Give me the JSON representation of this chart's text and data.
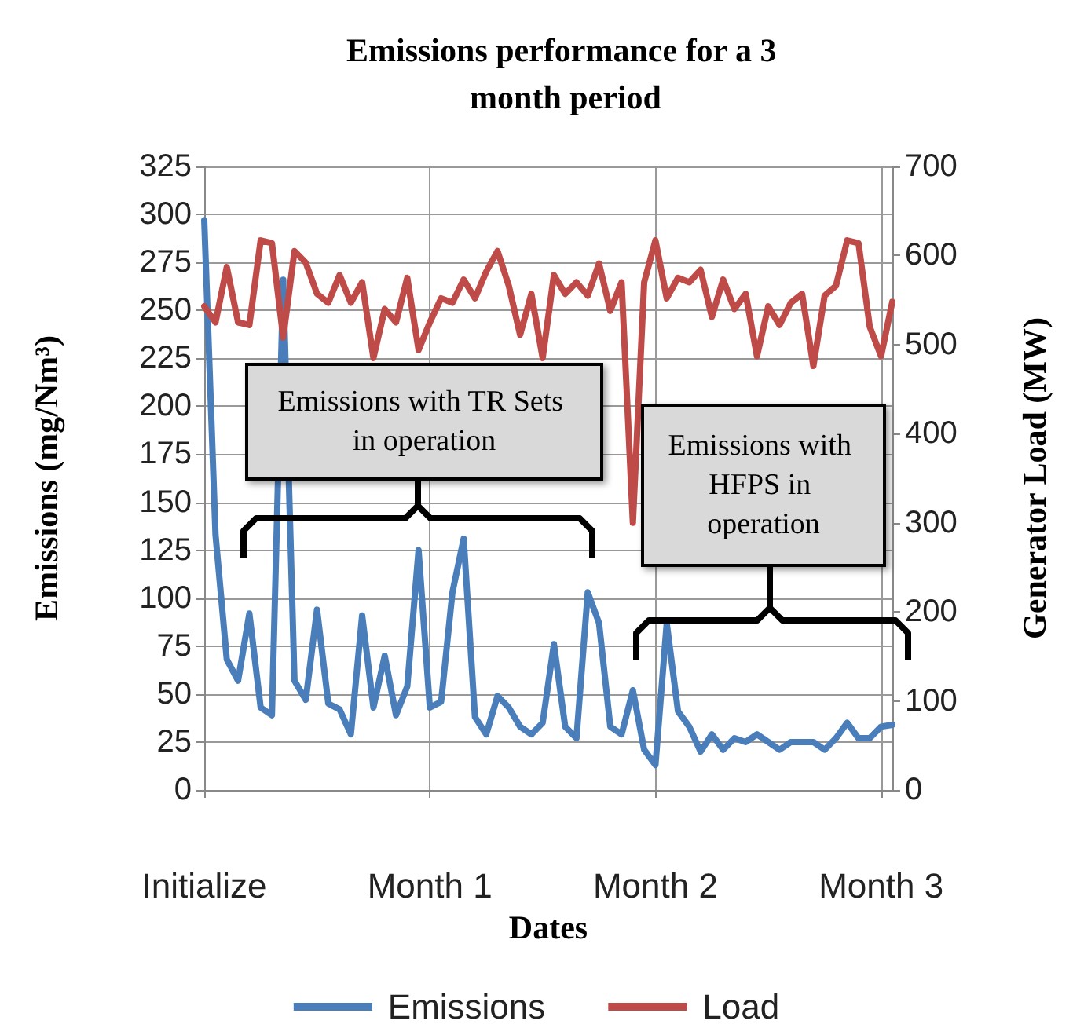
{
  "chart_data": {
    "type": "line",
    "title": "Emissions performance for a 3 month period",
    "xlabel": "Dates",
    "ylabel": "Emissions (mg/Nm³)",
    "y2label": "Generator Load (MW)",
    "categories": [
      "Initialize",
      null,
      null,
      null,
      null,
      null,
      null,
      null,
      null,
      null,
      null,
      null,
      null,
      null,
      null,
      null,
      null,
      null,
      null,
      null,
      "Month 1",
      null,
      null,
      null,
      null,
      null,
      null,
      null,
      null,
      null,
      null,
      null,
      null,
      null,
      null,
      null,
      null,
      null,
      null,
      null,
      "Month 2",
      null,
      null,
      null,
      null,
      null,
      null,
      null,
      null,
      null,
      null,
      null,
      null,
      null,
      null,
      null,
      null,
      null,
      null,
      null,
      "Month 3",
      null
    ],
    "ylim": [
      0,
      325
    ],
    "yticks": [
      0,
      25,
      50,
      75,
      100,
      125,
      150,
      175,
      200,
      225,
      250,
      275,
      300,
      325
    ],
    "y2lim": [
      0,
      700
    ],
    "y2ticks": [
      0,
      100,
      200,
      300,
      400,
      500,
      600,
      700
    ],
    "grid": true,
    "legend": "bottom",
    "marker": "none",
    "line_style": "solid",
    "annotations": [
      "Emissions with TR Sets in operation",
      "Emissions with HFPS in operation"
    ],
    "series": [
      {
        "name": "Emissions",
        "color": "#4a7ebb",
        "values": [
          297,
          133,
          68,
          57,
          92,
          43,
          39,
          266,
          57,
          47,
          94,
          45,
          42,
          29,
          91,
          43,
          70,
          39,
          54,
          125,
          43,
          46,
          103,
          131,
          38,
          29,
          49,
          43,
          33,
          29,
          35,
          76,
          33,
          27,
          103,
          87,
          33,
          29,
          52,
          21,
          13,
          87,
          41,
          33,
          20,
          29,
          21,
          27,
          25,
          29,
          25,
          21,
          25,
          25,
          25,
          21,
          27,
          35,
          27,
          27,
          33,
          34
        ]
      },
      {
        "name": "Load",
        "color": "#be4b48",
        "axis": "y2",
        "values": [
          543,
          525,
          587,
          525,
          522,
          617,
          614,
          508,
          605,
          592,
          557,
          547,
          578,
          547,
          570,
          485,
          540,
          525,
          575,
          494,
          525,
          552,
          547,
          573,
          552,
          582,
          605,
          566,
          511,
          557,
          485,
          578,
          557,
          570,
          555,
          591,
          538,
          570,
          300,
          570,
          617,
          552,
          575,
          570,
          584,
          531,
          573,
          540,
          557,
          487,
          543,
          522,
          547,
          557,
          476,
          555,
          566,
          617,
          614,
          520,
          487,
          548
        ]
      }
    ]
  }
}
